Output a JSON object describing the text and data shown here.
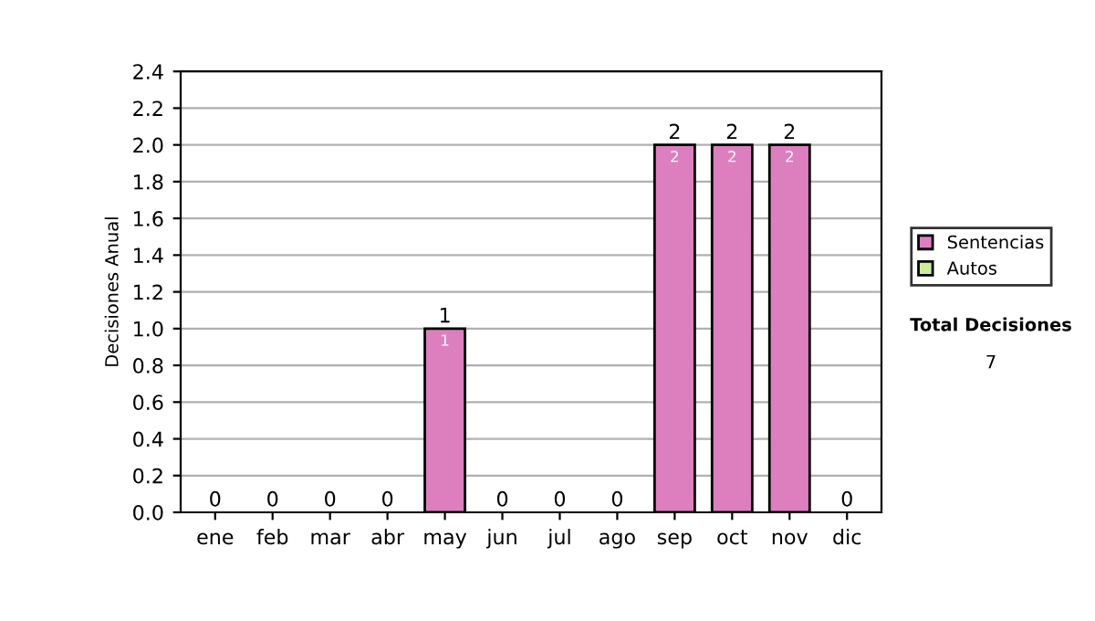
{
  "chart_data": {
    "type": "bar",
    "stacked": true,
    "ylabel": "Decisiones Anual",
    "categories": [
      "ene",
      "feb",
      "mar",
      "abr",
      "may",
      "jun",
      "jul",
      "ago",
      "sep",
      "oct",
      "nov",
      "dic"
    ],
    "series": [
      {
        "name": "Sentencias",
        "color": "#dd7fbf",
        "values": [
          0,
          0,
          0,
          0,
          1,
          0,
          0,
          0,
          2,
          2,
          2,
          0
        ],
        "value_labels": [
          null,
          null,
          null,
          null,
          "1",
          null,
          null,
          null,
          "2",
          "2",
          "2",
          null
        ]
      },
      {
        "name": "Autos",
        "color": "#ccee99",
        "values": [
          0,
          0,
          0,
          0,
          0,
          0,
          0,
          0,
          0,
          0,
          0,
          0
        ]
      }
    ],
    "totals": [
      "0",
      "0",
      "0",
      "0",
      "1",
      "0",
      "0",
      "0",
      "2",
      "2",
      "2",
      "0"
    ],
    "ylim": [
      0,
      2.4
    ],
    "yticks": [
      {
        "value": 0,
        "label": "0.0"
      },
      {
        "value": 0.2,
        "label": "0.2"
      },
      {
        "value": 0.4,
        "label": "0.4"
      },
      {
        "value": 0.6,
        "label": "0.6"
      },
      {
        "value": 0.8,
        "label": "0.8"
      },
      {
        "value": 1,
        "label": "1.0"
      },
      {
        "value": 1.2,
        "label": "1.2"
      },
      {
        "value": 1.4,
        "label": "1.4"
      },
      {
        "value": 1.6,
        "label": "1.6"
      },
      {
        "value": 1.8,
        "label": "1.8"
      },
      {
        "value": 2,
        "label": "2.0"
      },
      {
        "value": 2.2,
        "label": "2.2"
      },
      {
        "value": 2.4,
        "label": "2.4"
      }
    ],
    "grid": "y",
    "legend": "right",
    "annotations": [
      "Total Decisiones",
      "7"
    ]
  }
}
